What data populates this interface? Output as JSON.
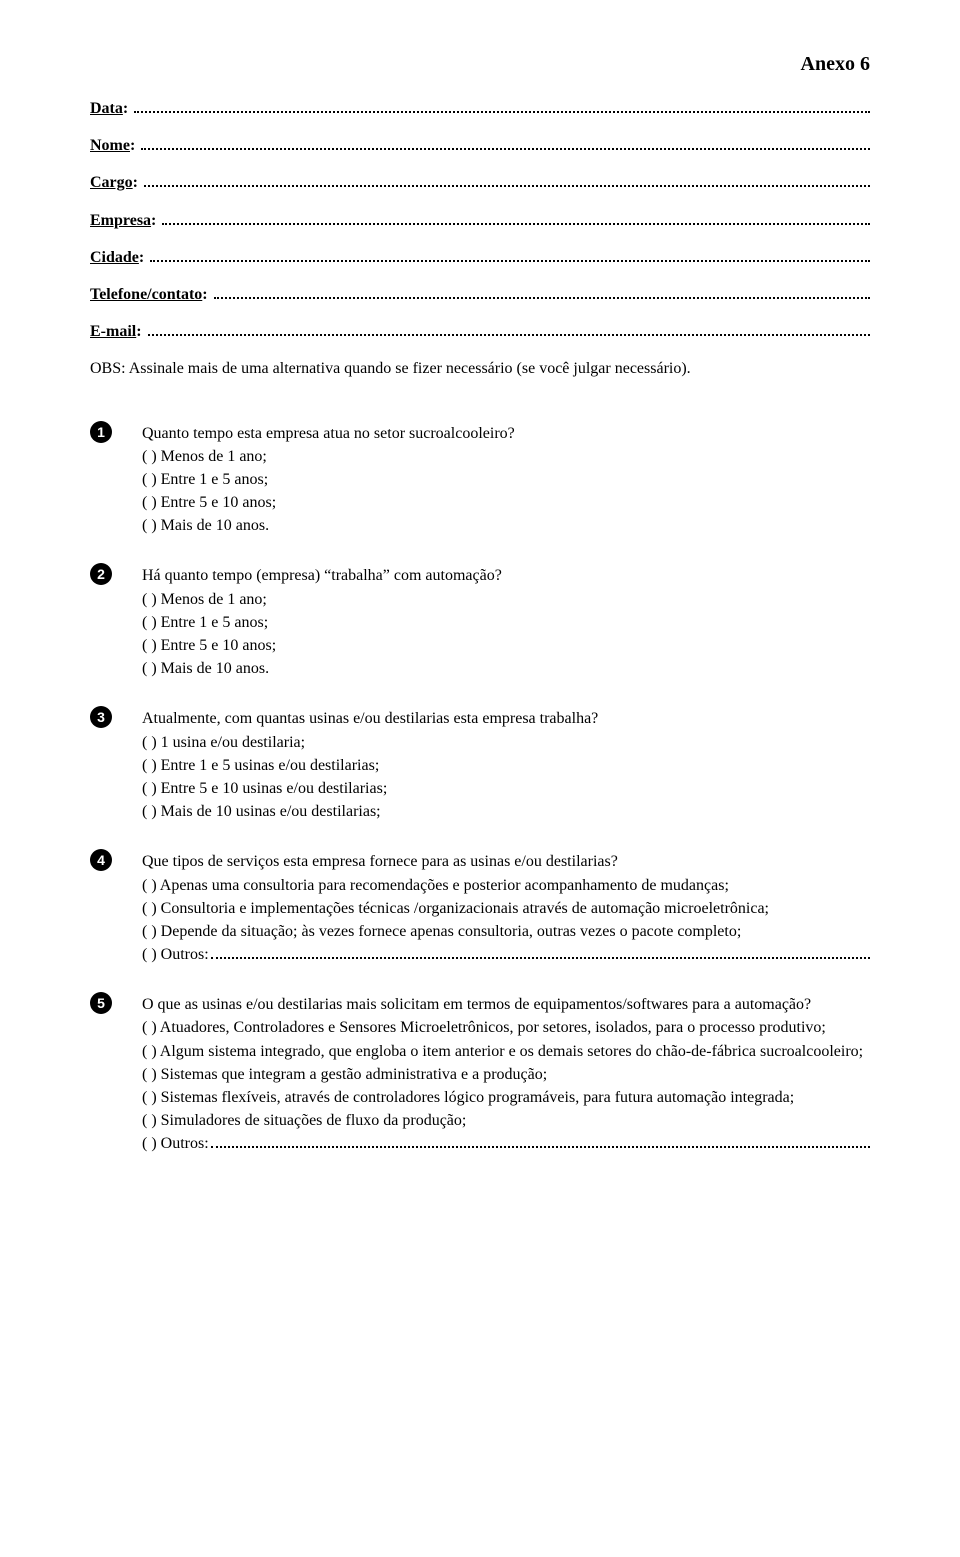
{
  "header": {
    "annex": "Anexo 6"
  },
  "fields": [
    {
      "label": "Data"
    },
    {
      "label": "Nome"
    },
    {
      "label": "Cargo"
    },
    {
      "label": "Empresa"
    },
    {
      "label": "Cidade"
    },
    {
      "label": "Telefone/contato"
    },
    {
      "label": "E-mail"
    }
  ],
  "note": "OBS: Assinale mais de uma alternativa quando se fizer necessário (se você julgar necessário).",
  "q1": {
    "num": "1",
    "prompt": "Quanto tempo esta empresa atua no setor sucroalcooleiro?",
    "opts": [
      "(  )  Menos de 1 ano;",
      "(  )  Entre 1 e 5 anos;",
      "(  )  Entre 5 e 10 anos;",
      "(  )  Mais de 10 anos."
    ]
  },
  "q2": {
    "num": "2",
    "prompt": "Há quanto tempo (empresa) “trabalha” com automação?",
    "opts": [
      "(  )  Menos de 1 ano;",
      "(  )  Entre 1 e 5 anos;",
      "(  )  Entre 5 e 10 anos;",
      "(  )  Mais de 10 anos."
    ]
  },
  "q3": {
    "num": "3",
    "prompt": "Atualmente, com quantas usinas e/ou destilarias esta empresa trabalha?",
    "opts": [
      "(  )  1 usina e/ou destilaria;",
      "(  )  Entre 1 e 5 usinas e/ou destilarias;",
      "(  )  Entre 5 e 10 usinas e/ou destilarias;",
      "(  )  Mais de 10 usinas e/ou destilarias;"
    ]
  },
  "q4": {
    "num": "4",
    "prompt": "Que tipos de serviços esta empresa fornece para as usinas e/ou destilarias?",
    "opt_a": "(  ) Apenas uma consultoria para recomendações e posterior acompanhamento de mudanças;",
    "opt_b": "( ) Consultoria e implementações técnicas /organizacionais através de automação microeletrônica;",
    "opt_c": "(  )  Depende da situação; às vezes fornece apenas consultoria, outras vezes o pacote completo;",
    "opt_d_lead": "(  )  Outros:"
  },
  "q5": {
    "num": "5",
    "prompt": "O que as usinas e/ou destilarias mais solicitam em termos de equipamentos/softwares para a automação?",
    "opt_a": "( ) Atuadores, Controladores e Sensores Microeletrônicos, por setores, isolados,  para o processo produtivo;",
    "opt_b": "(  )  Algum sistema integrado, que engloba o item anterior e os demais setores do chão-de-fábrica sucroalcooleiro;",
    "opt_c": "(  )  Sistemas que integram a gestão administrativa e a produção;",
    "opt_d": "(  )  Sistemas flexíveis, através de controladores lógico programáveis, para futura automação integrada;",
    "opt_e": "(  )  Simuladores de situações de fluxo da produção;",
    "opt_f_lead": "(  )  Outros:"
  }
}
